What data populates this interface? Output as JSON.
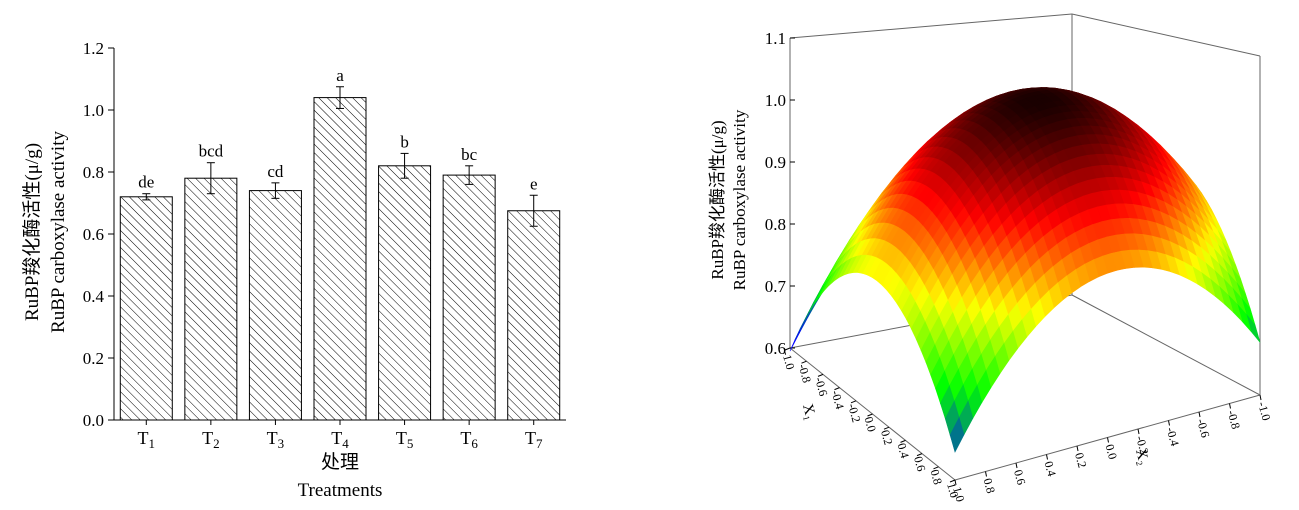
{
  "chart_data": [
    {
      "type": "bar",
      "ylabel_cn": "RuBP羧化酶活性(μ/g)",
      "ylabel_en": "RuBP carboxylase activity",
      "xlabel_cn": "处理",
      "xlabel_en": "Treatments",
      "categories": [
        {
          "base": "T",
          "sub": "1"
        },
        {
          "base": "T",
          "sub": "2"
        },
        {
          "base": "T",
          "sub": "3"
        },
        {
          "base": "T",
          "sub": "4"
        },
        {
          "base": "T",
          "sub": "5"
        },
        {
          "base": "T",
          "sub": "6"
        },
        {
          "base": "T",
          "sub": "7"
        }
      ],
      "values": [
        0.72,
        0.78,
        0.74,
        1.04,
        0.82,
        0.79,
        0.675
      ],
      "errors": [
        0.01,
        0.05,
        0.025,
        0.035,
        0.04,
        0.03,
        0.05
      ],
      "letters": [
        "de",
        "bcd",
        "cd",
        "a",
        "b",
        "bc",
        "e"
      ],
      "ylim": [
        0,
        1.2
      ],
      "yticks": [
        "0.0",
        "0.2",
        "0.4",
        "0.6",
        "0.8",
        "1.0",
        "1.2"
      ],
      "pattern": "diagonal-hatch"
    },
    {
      "type": "surface",
      "zlabel_cn": "RuBP羧化酶活性(μ/g)",
      "zlabel_en": "RuBP carboxylase activity",
      "x1_label": "X₁",
      "x2_label": "X₂",
      "zlim": [
        0.6,
        1.1
      ],
      "zticks": [
        "0.6",
        "0.7",
        "0.8",
        "0.9",
        "1.0",
        "1.1"
      ],
      "x1_ticks": [
        "-1.0",
        "-0.8",
        "-0.6",
        "-0.4",
        "-0.2",
        "0.0",
        "0.2",
        "0.4",
        "0.6",
        "0.8",
        "1.0"
      ],
      "x2_ticks": [
        "1.0",
        "0.8",
        "0.6",
        "0.4",
        "0.2",
        "0.0",
        "-0.2",
        "-0.4",
        "-0.6",
        "-0.8",
        "-1.0"
      ],
      "peak": 1.04,
      "colormap": [
        "#0000ff",
        "#00ff00",
        "#ffff00",
        "#ff0000",
        "#1a0000"
      ]
    }
  ]
}
